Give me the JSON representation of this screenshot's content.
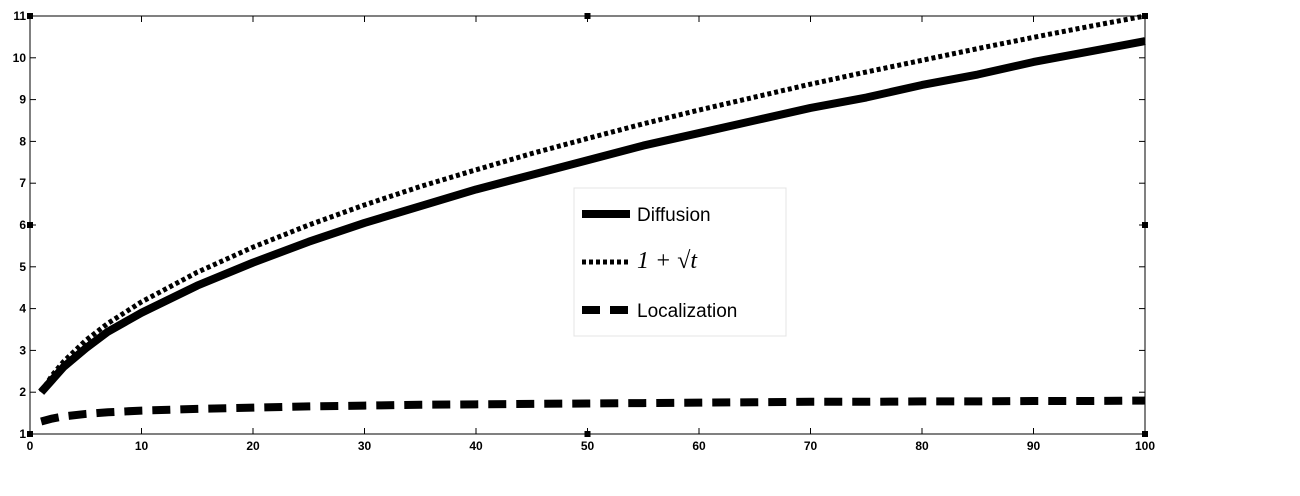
{
  "chart_data": {
    "type": "line",
    "title": "",
    "xlabel": "",
    "ylabel": "",
    "xlim": [
      0,
      100
    ],
    "ylim": [
      1,
      11
    ],
    "x_ticks": [
      0,
      10,
      20,
      30,
      40,
      50,
      60,
      70,
      80,
      90,
      100
    ],
    "y_ticks": [
      1,
      2,
      3,
      4,
      5,
      6,
      7,
      8,
      9,
      10,
      11
    ],
    "grid": false,
    "legend_position": "center",
    "legend": [
      "Diffusion",
      "1 + √t",
      "Localization"
    ],
    "series": [
      {
        "name": "Diffusion",
        "style": "solid",
        "color": "#000000",
        "x": [
          1,
          2,
          3,
          5,
          7,
          10,
          15,
          20,
          25,
          30,
          35,
          40,
          45,
          50,
          55,
          60,
          65,
          70,
          75,
          80,
          85,
          90,
          95,
          100
        ],
        "y": [
          2.0,
          2.3,
          2.6,
          3.05,
          3.45,
          3.9,
          4.55,
          5.1,
          5.6,
          6.05,
          6.45,
          6.85,
          7.2,
          7.55,
          7.9,
          8.2,
          8.5,
          8.8,
          9.05,
          9.35,
          9.6,
          9.9,
          10.15,
          10.4
        ]
      },
      {
        "name": "1 + √t",
        "style": "dotted",
        "color": "#000000",
        "x": [
          1,
          2,
          3,
          5,
          7,
          10,
          15,
          20,
          25,
          30,
          35,
          40,
          45,
          50,
          55,
          60,
          65,
          70,
          75,
          80,
          85,
          90,
          95,
          100
        ],
        "y": [
          2.0,
          2.41,
          2.73,
          3.24,
          3.65,
          4.16,
          4.87,
          5.47,
          6.0,
          6.48,
          6.92,
          7.32,
          7.71,
          8.07,
          8.42,
          8.75,
          9.06,
          9.37,
          9.66,
          9.94,
          10.22,
          10.49,
          10.75,
          11.0
        ]
      },
      {
        "name": "Localization",
        "style": "dashed",
        "color": "#000000",
        "x": [
          1,
          2,
          3,
          5,
          7,
          10,
          15,
          20,
          25,
          30,
          35,
          40,
          45,
          50,
          55,
          60,
          65,
          70,
          75,
          80,
          85,
          90,
          95,
          100
        ],
        "y": [
          1.3,
          1.37,
          1.42,
          1.48,
          1.52,
          1.56,
          1.6,
          1.63,
          1.66,
          1.68,
          1.7,
          1.71,
          1.72,
          1.73,
          1.74,
          1.75,
          1.76,
          1.77,
          1.77,
          1.78,
          1.78,
          1.79,
          1.79,
          1.8
        ]
      }
    ]
  }
}
